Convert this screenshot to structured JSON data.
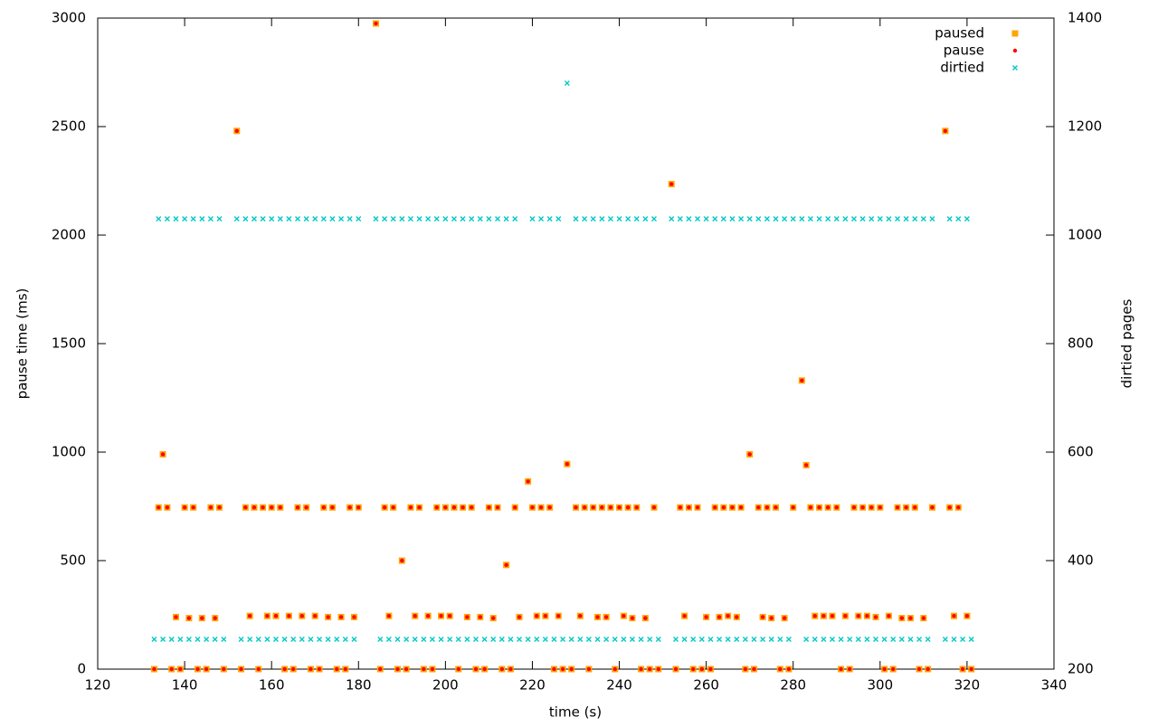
{
  "chart_data": {
    "type": "scatter",
    "x_label": "time (s)",
    "y_label": "pause time (ms)",
    "y2_label": "dirtied pages",
    "xlim": [
      120,
      340
    ],
    "xticks": [
      120,
      140,
      160,
      180,
      200,
      220,
      240,
      260,
      280,
      300,
      320,
      340
    ],
    "ylim": [
      0,
      3000
    ],
    "yticks": [
      0,
      500,
      1000,
      1500,
      2000,
      2500,
      3000
    ],
    "y2lim": [
      200,
      1400
    ],
    "y2ticks": [
      200,
      400,
      600,
      800,
      1000,
      1200,
      1400
    ],
    "legend": "upper right",
    "grid": false,
    "x": [
      133,
      134,
      135,
      136,
      137,
      138,
      139,
      140,
      141,
      142,
      143,
      144,
      145,
      146,
      147,
      148,
      149,
      152,
      153,
      154,
      155,
      156,
      157,
      158,
      159,
      160,
      161,
      162,
      163,
      164,
      165,
      166,
      167,
      168,
      169,
      170,
      171,
      172,
      173,
      174,
      175,
      176,
      177,
      178,
      179,
      180,
      184,
      185,
      186,
      187,
      188,
      189,
      190,
      191,
      192,
      193,
      194,
      195,
      196,
      197,
      198,
      199,
      200,
      201,
      202,
      203,
      204,
      205,
      206,
      207,
      208,
      209,
      210,
      211,
      212,
      213,
      214,
      215,
      216,
      217,
      219,
      220,
      221,
      222,
      223,
      224,
      225,
      226,
      227,
      228,
      229,
      230,
      231,
      232,
      233,
      234,
      235,
      236,
      237,
      238,
      239,
      240,
      241,
      242,
      243,
      244,
      245,
      246,
      247,
      248,
      249,
      252,
      253,
      254,
      255,
      256,
      257,
      258,
      259,
      260,
      261,
      262,
      263,
      264,
      265,
      266,
      267,
      268,
      269,
      270,
      271,
      272,
      273,
      274,
      275,
      276,
      277,
      278,
      279,
      280,
      282,
      283,
      284,
      285,
      286,
      287,
      288,
      289,
      290,
      291,
      292,
      293,
      294,
      295,
      296,
      297,
      298,
      299,
      300,
      301,
      302,
      303,
      304,
      305,
      306,
      307,
      308,
      309,
      310,
      311,
      312,
      315,
      316,
      317,
      318,
      319,
      320,
      321
    ],
    "series": [
      {
        "name": "paused",
        "color": "#ffa500",
        "marker": "square",
        "axis": "y",
        "values": [
          0,
          745,
          990,
          745,
          0,
          240,
          0,
          745,
          235,
          745,
          0,
          235,
          0,
          745,
          235,
          745,
          0,
          2480,
          0,
          745,
          245,
          745,
          0,
          745,
          245,
          745,
          245,
          745,
          0,
          245,
          0,
          745,
          245,
          745,
          0,
          245,
          0,
          745,
          240,
          745,
          0,
          240,
          0,
          745,
          240,
          745,
          2975,
          0,
          745,
          245,
          745,
          0,
          500,
          0,
          745,
          245,
          745,
          0,
          245,
          0,
          745,
          245,
          745,
          245,
          745,
          0,
          745,
          240,
          745,
          0,
          240,
          0,
          745,
          235,
          745,
          0,
          480,
          0,
          745,
          240,
          865,
          745,
          245,
          745,
          245,
          745,
          0,
          245,
          0,
          945,
          0,
          745,
          245,
          745,
          0,
          745,
          240,
          745,
          240,
          745,
          0,
          745,
          245,
          745,
          235,
          745,
          0,
          235,
          0,
          745,
          0,
          2235,
          0,
          745,
          245,
          745,
          0,
          745,
          0,
          240,
          0,
          745,
          240,
          745,
          245,
          745,
          240,
          745,
          0,
          990,
          0,
          745,
          240,
          745,
          235,
          745,
          0,
          235,
          0,
          745,
          1330,
          940,
          745,
          245,
          745,
          245,
          745,
          245,
          745,
          0,
          245,
          0,
          745,
          245,
          745,
          245,
          745,
          240,
          745,
          0,
          245,
          0,
          745,
          235,
          745,
          235,
          745,
          0,
          235,
          0,
          745,
          2480,
          745,
          245,
          745,
          0,
          245,
          0
        ]
      },
      {
        "name": "pause",
        "color": "#ff0000",
        "marker": "circle",
        "axis": "y",
        "values": [
          0,
          745,
          990,
          745,
          0,
          240,
          0,
          745,
          235,
          745,
          0,
          235,
          0,
          745,
          235,
          745,
          0,
          2480,
          0,
          745,
          245,
          745,
          0,
          745,
          245,
          745,
          245,
          745,
          0,
          245,
          0,
          745,
          245,
          745,
          0,
          245,
          0,
          745,
          240,
          745,
          0,
          240,
          0,
          745,
          240,
          745,
          2975,
          0,
          745,
          245,
          745,
          0,
          500,
          0,
          745,
          245,
          745,
          0,
          245,
          0,
          745,
          245,
          745,
          245,
          745,
          0,
          745,
          240,
          745,
          0,
          240,
          0,
          745,
          235,
          745,
          0,
          480,
          0,
          745,
          240,
          865,
          745,
          245,
          745,
          245,
          745,
          0,
          245,
          0,
          945,
          0,
          745,
          245,
          745,
          0,
          745,
          240,
          745,
          240,
          745,
          0,
          745,
          245,
          745,
          235,
          745,
          0,
          235,
          0,
          745,
          0,
          2235,
          0,
          745,
          245,
          745,
          0,
          745,
          0,
          240,
          0,
          745,
          240,
          745,
          245,
          745,
          240,
          745,
          0,
          990,
          0,
          745,
          240,
          745,
          235,
          745,
          0,
          235,
          0,
          745,
          1330,
          940,
          745,
          245,
          745,
          245,
          745,
          245,
          745,
          0,
          245,
          0,
          745,
          245,
          745,
          245,
          745,
          240,
          745,
          0,
          245,
          0,
          745,
          235,
          745,
          235,
          745,
          0,
          235,
          0,
          745,
          2480,
          745,
          245,
          745,
          0,
          245,
          0
        ]
      },
      {
        "name": "dirtied",
        "color": "#00c8c8",
        "marker": "x",
        "axis": "y2",
        "values": [
          255,
          1030,
          255,
          1030,
          255,
          1030,
          255,
          1030,
          255,
          1030,
          255,
          1030,
          255,
          1030,
          255,
          1030,
          255,
          1030,
          255,
          1030,
          255,
          1030,
          255,
          1030,
          255,
          1030,
          255,
          1030,
          255,
          1030,
          255,
          1030,
          255,
          1030,
          255,
          1030,
          255,
          1030,
          255,
          1030,
          255,
          1030,
          255,
          1030,
          255,
          1030,
          1030,
          255,
          1030,
          255,
          1030,
          255,
          1030,
          255,
          1030,
          255,
          1030,
          255,
          1030,
          255,
          1030,
          255,
          1030,
          255,
          1030,
          255,
          1030,
          255,
          1030,
          255,
          1030,
          255,
          1030,
          255,
          1030,
          255,
          1030,
          255,
          1030,
          255,
          255,
          1030,
          255,
          1030,
          255,
          1030,
          255,
          1030,
          255,
          1280,
          255,
          1030,
          255,
          1030,
          255,
          1030,
          255,
          1030,
          255,
          1030,
          255,
          1030,
          255,
          1030,
          255,
          1030,
          255,
          1030,
          255,
          1030,
          255,
          1030,
          255,
          1030,
          255,
          1030,
          255,
          1030,
          255,
          1030,
          255,
          1030,
          255,
          1030,
          255,
          1030,
          255,
          1030,
          255,
          1030,
          255,
          1030,
          255,
          1030,
          255,
          1030,
          255,
          1030,
          255,
          1030,
          1030,
          255,
          1030,
          255,
          1030,
          255,
          1030,
          255,
          1030,
          255,
          1030,
          255,
          1030,
          255,
          1030,
          255,
          1030,
          255,
          1030,
          255,
          1030,
          255,
          1030,
          255,
          1030,
          255,
          1030,
          255,
          1030,
          255,
          1030,
          255,
          1030,
          255,
          1030,
          255,
          1030,
          255
        ]
      }
    ]
  }
}
